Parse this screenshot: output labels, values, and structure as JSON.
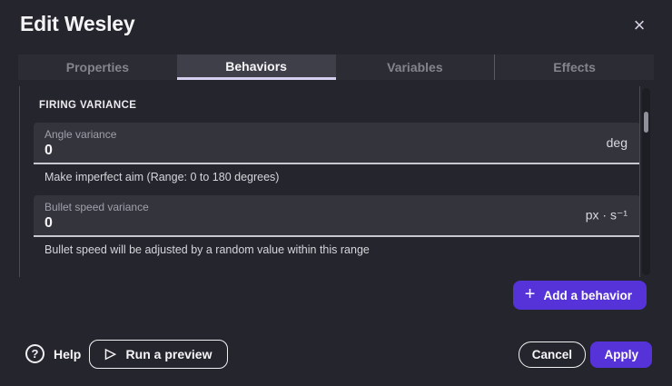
{
  "dialog": {
    "title": "Edit Wesley"
  },
  "icons": {
    "close": "×",
    "plus": "+",
    "play": "▷",
    "help": "?"
  },
  "tabs": [
    {
      "label": "Properties",
      "active": false
    },
    {
      "label": "Behaviors",
      "active": true
    },
    {
      "label": "Variables",
      "active": false
    },
    {
      "label": "Effects",
      "active": false
    }
  ],
  "section": {
    "heading": "FIRING VARIANCE"
  },
  "fields": [
    {
      "label": "Angle variance",
      "value": "0",
      "unit": "deg",
      "helper": "Make imperfect aim (Range: 0 to 180 degrees)"
    },
    {
      "label": "Bullet speed variance",
      "value": "0",
      "unit": "px · s⁻¹",
      "helper": "Bullet speed will be adjusted by a random value within this range"
    }
  ],
  "add_behavior": {
    "label": "Add a behavior"
  },
  "footer": {
    "help_label": "Help",
    "run_preview_label": "Run a preview",
    "cancel_label": "Cancel",
    "apply_label": "Apply"
  },
  "colors": {
    "accent_purple": "#5633d8",
    "dialog_background": "#25252d",
    "active_tab_background": "#3f3f49",
    "active_tab_underline": "#d5cff0",
    "field_background": "#34343d",
    "scrollbar_thumb": "#90909a"
  }
}
